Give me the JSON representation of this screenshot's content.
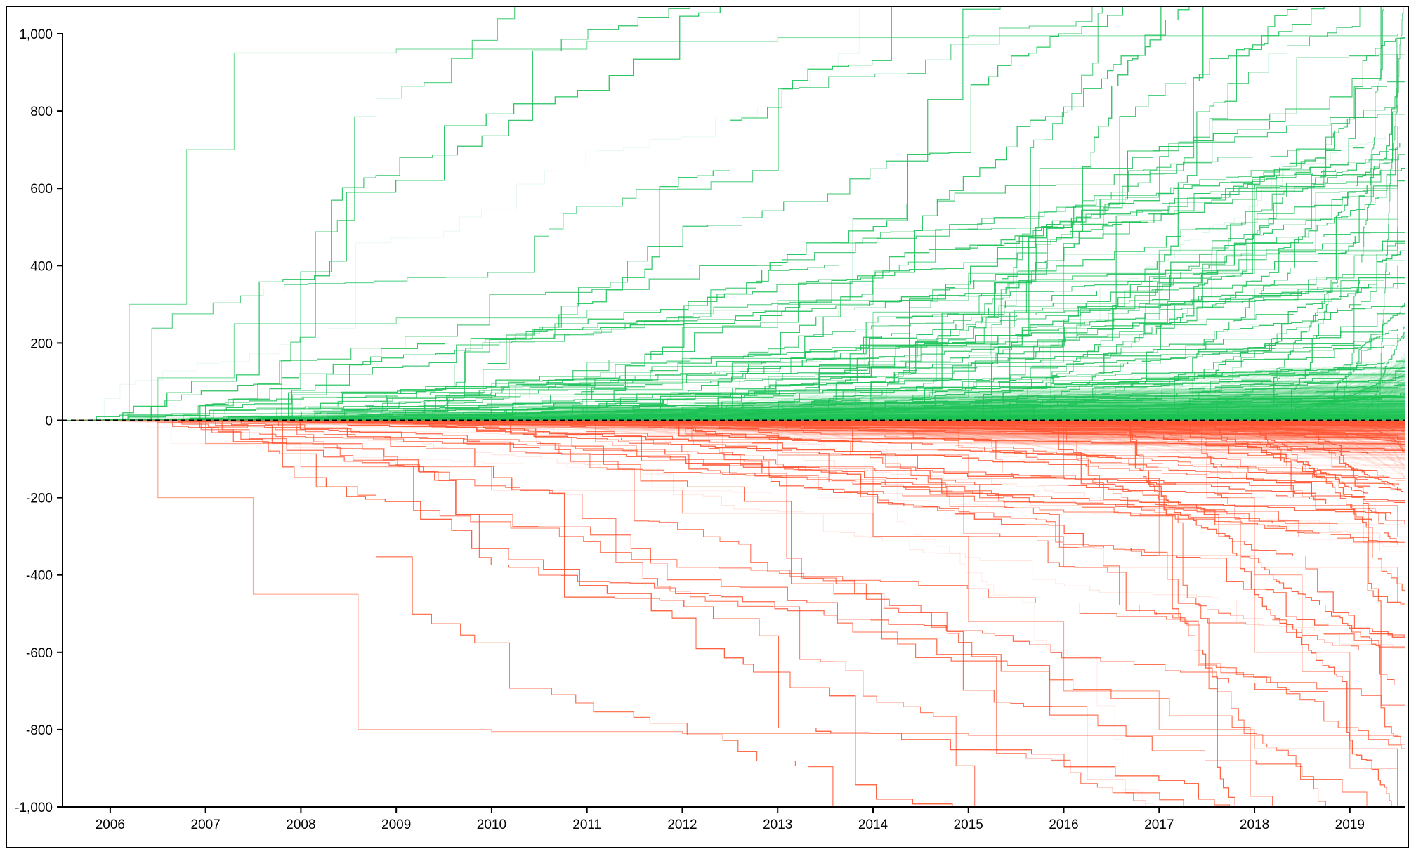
{
  "chart_data": {
    "type": "line",
    "title": "",
    "xlabel": "",
    "ylabel": "",
    "x_ticks": [
      "2006",
      "2007",
      "2008",
      "2009",
      "2010",
      "2011",
      "2012",
      "2013",
      "2014",
      "2015",
      "2016",
      "2017",
      "2018",
      "2019"
    ],
    "y_ticks": [
      "1,000",
      "800",
      "600",
      "400",
      "200",
      "0",
      "-200",
      "-400",
      "-600",
      "-800",
      "-1,000"
    ],
    "xlim": [
      "2005-07",
      "2019-08"
    ],
    "ylim": [
      -1000,
      1000
    ],
    "reference_line": {
      "y": 0,
      "style": "dashed"
    },
    "grid": false,
    "legend": "none",
    "series_colors": {
      "positive": "#22c55e",
      "negative": "#ff5a36"
    },
    "series_groups": [
      {
        "color": "positive",
        "description_values": "many cumulative step lines ending above zero"
      },
      {
        "color": "negative",
        "description_values": "many cumulative step lines ending below zero"
      }
    ],
    "sample_series": [
      {
        "color": "positive",
        "x": [
          2005.6,
          2006.5,
          2007.3,
          2009,
          2011,
          2013,
          2015,
          2017,
          2019.5
        ],
        "y": [
          0,
          110,
          250,
          265,
          285,
          310,
          360,
          430,
          520
        ]
      },
      {
        "color": "positive",
        "x": [
          2005.6,
          2006.2,
          2006.8,
          2007.3,
          2009,
          2011,
          2013,
          2015,
          2019.5
        ],
        "y": [
          0,
          300,
          700,
          950,
          960,
          980,
          990,
          995,
          1000
        ]
      },
      {
        "color": "positive",
        "x": [
          2005.6,
          2007,
          2008,
          2010,
          2012,
          2014,
          2016,
          2018,
          2019.5
        ],
        "y": [
          0,
          40,
          60,
          95,
          140,
          190,
          260,
          340,
          400
        ]
      },
      {
        "color": "positive",
        "x": [
          2007,
          2008,
          2010,
          2012,
          2014,
          2016,
          2018,
          2019.5
        ],
        "y": [
          0,
          30,
          80,
          160,
          280,
          430,
          600,
          760
        ]
      },
      {
        "color": "positive",
        "x": [
          2010.5,
          2011,
          2012,
          2013,
          2014,
          2015,
          2017,
          2019.5
        ],
        "y": [
          0,
          150,
          240,
          300,
          340,
          380,
          440,
          500
        ]
      },
      {
        "color": "positive",
        "x": [
          2013,
          2014,
          2015,
          2016,
          2017,
          2018,
          2019.5
        ],
        "y": [
          0,
          60,
          150,
          260,
          380,
          520,
          680
        ]
      },
      {
        "color": "negative",
        "x": [
          2005.6,
          2006.5,
          2007.5,
          2008.6,
          2010,
          2012,
          2015,
          2019.5
        ],
        "y": [
          0,
          -200,
          -450,
          -800,
          -805,
          -810,
          -815,
          -820
        ]
      },
      {
        "color": "negative",
        "x": [
          2006,
          2007,
          2008,
          2010,
          2012,
          2014,
          2016,
          2019.5
        ],
        "y": [
          0,
          -60,
          -120,
          -180,
          -240,
          -300,
          -380,
          -470
        ]
      },
      {
        "color": "negative",
        "x": [
          2012,
          2013,
          2014,
          2015,
          2016,
          2017,
          2018,
          2019.5
        ],
        "y": [
          0,
          -120,
          -300,
          -520,
          -700,
          -800,
          -850,
          -900
        ]
      },
      {
        "color": "negative",
        "x": [
          2015,
          2016,
          2017,
          2018,
          2019,
          2019.5
        ],
        "y": [
          0,
          -150,
          -350,
          -600,
          -850,
          -1000
        ]
      },
      {
        "color": "negative",
        "x": [
          2017,
          2017.5,
          2018,
          2018.5,
          2019,
          2019.5
        ],
        "y": [
          0,
          -200,
          -400,
          -650,
          -900,
          -1000
        ]
      },
      {
        "color": "negative",
        "x": [
          2011,
          2012.1,
          2013,
          2015,
          2017,
          2019.5
        ],
        "y": [
          0,
          -50,
          -90,
          -150,
          -220,
          -300
        ]
      }
    ]
  }
}
